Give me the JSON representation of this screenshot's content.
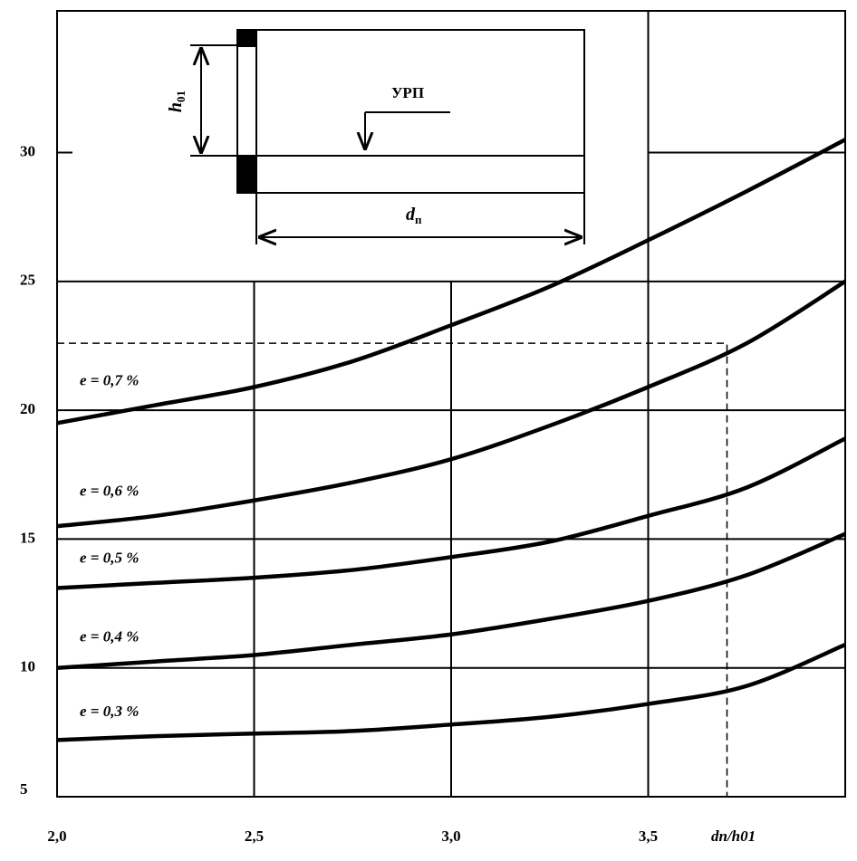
{
  "chart_data": {
    "type": "line",
    "x_label": "dп/h01",
    "x": [
      2.0,
      2.25,
      2.5,
      2.75,
      3.0,
      3.25,
      3.5,
      3.75,
      4.0
    ],
    "series": [
      {
        "name": "e = 0,7 %",
        "color": "#000000",
        "values": [
          19.5,
          20.2,
          20.9,
          21.9,
          23.3,
          24.8,
          26.6,
          28.5,
          30.5
        ]
      },
      {
        "name": "e = 0,6 %",
        "color": "#000000",
        "values": [
          15.5,
          15.9,
          16.5,
          17.2,
          18.1,
          19.4,
          20.9,
          22.6,
          25.0
        ]
      },
      {
        "name": "e = 0,5 %",
        "color": "#000000",
        "values": [
          13.1,
          13.3,
          13.5,
          13.8,
          14.3,
          14.9,
          15.9,
          17.0,
          18.9
        ]
      },
      {
        "name": "e = 0,4 %",
        "color": "#000000",
        "values": [
          10.0,
          10.25,
          10.5,
          10.9,
          11.3,
          11.9,
          12.6,
          13.6,
          15.2
        ]
      },
      {
        "name": "e = 0,3 %",
        "color": "#000000",
        "values": [
          7.2,
          7.35,
          7.45,
          7.55,
          7.8,
          8.1,
          8.6,
          9.3,
          10.9
        ]
      }
    ],
    "example_point": {
      "x": 3.7,
      "y": 22.6
    },
    "xlim": [
      2.0,
      4.0
    ],
    "ylim": [
      5,
      35.5
    ],
    "xticks": [
      {
        "value": 2.0,
        "label": "2,0"
      },
      {
        "value": 2.5,
        "label": "2,5"
      },
      {
        "value": 3.0,
        "label": "3,0"
      },
      {
        "value": 3.5,
        "label": "3,5"
      }
    ],
    "yticks": [
      5,
      10,
      15,
      20,
      25,
      30
    ],
    "grid": true
  },
  "inset": {
    "label": "УРП",
    "height_symbol": "h",
    "height_index": "01",
    "width_symbol": "d",
    "width_index": "п"
  }
}
